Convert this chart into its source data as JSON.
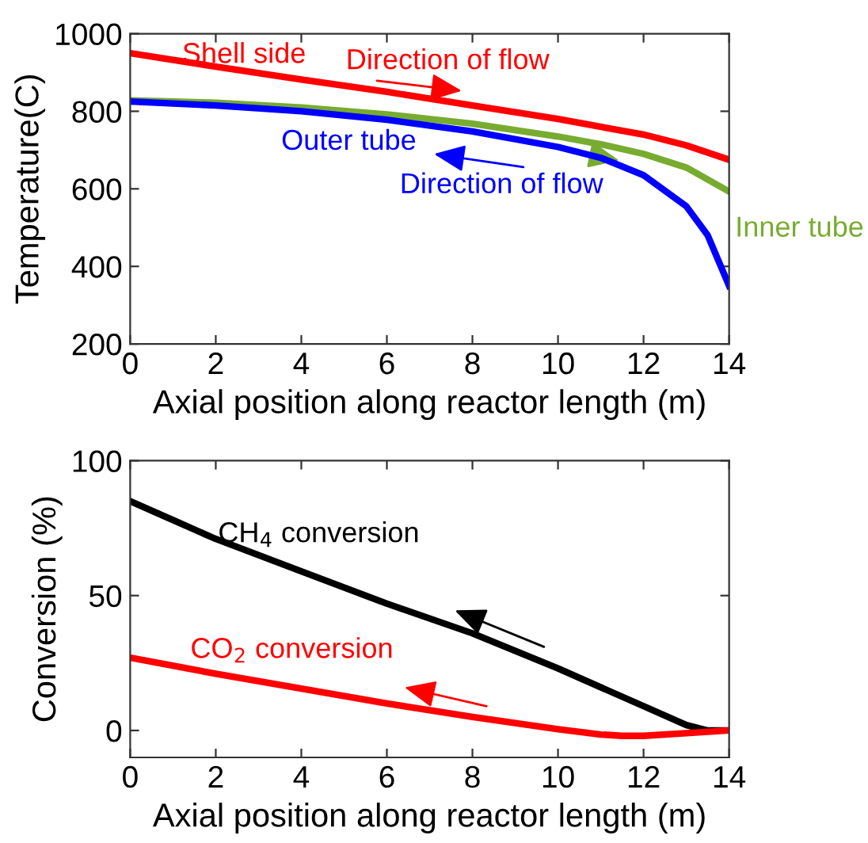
{
  "chart_data": [
    {
      "type": "line",
      "xlabel": "Axial position along reactor length (m)",
      "ylabel": "Temperature(C)",
      "xlim": [
        0,
        14
      ],
      "xticks": [
        0,
        2,
        4,
        6,
        8,
        10,
        12,
        14
      ],
      "ylim": [
        200,
        1000
      ],
      "yticks": [
        200,
        400,
        600,
        800,
        1000
      ],
      "grid": false,
      "legend": false,
      "line_style": "solid",
      "marker": "none",
      "series": [
        {
          "color": "#ff0000",
          "x": [
            0,
            2,
            4,
            6,
            8,
            10,
            12,
            13,
            14
          ],
          "values": [
            950,
            915,
            882,
            850,
            815,
            780,
            740,
            712,
            675
          ]
        },
        {
          "color": "#77ac30",
          "x": [
            0,
            2,
            4,
            6,
            8,
            10,
            11,
            12,
            13,
            14
          ],
          "values": [
            828,
            822,
            810,
            792,
            768,
            735,
            715,
            690,
            655,
            593
          ]
        },
        {
          "color": "#0000ff",
          "x": [
            0,
            2,
            4,
            6,
            8,
            10,
            11,
            12,
            13,
            13.5,
            14
          ],
          "values": [
            825,
            815,
            800,
            778,
            748,
            708,
            680,
            635,
            555,
            480,
            350
          ]
        }
      ],
      "annotations": [
        "Shell side",
        "Direction of flow",
        "Outer tube",
        "Direction of flow",
        "Inner tube"
      ]
    },
    {
      "type": "line",
      "xlabel": "Axial position along reactor length (m)",
      "ylabel": "Conversion (%)",
      "xlim": [
        0,
        14
      ],
      "xticks": [
        0,
        2,
        4,
        6,
        8,
        10,
        12,
        14
      ],
      "ylim": [
        -10,
        100
      ],
      "yticks": [
        0,
        50,
        100
      ],
      "grid": false,
      "legend": false,
      "line_style": "solid",
      "marker": "none",
      "series": [
        {
          "color": "#000000",
          "x": [
            0,
            1,
            2,
            4,
            6,
            8,
            10,
            12,
            13,
            13.5,
            14
          ],
          "values": [
            85,
            78,
            71,
            59,
            47,
            36,
            23,
            9,
            2,
            0,
            0
          ]
        },
        {
          "color": "#ff0000",
          "x": [
            0,
            2,
            4,
            6,
            8,
            10,
            11,
            11.5,
            12,
            13,
            14
          ],
          "values": [
            27,
            21,
            15.5,
            10,
            5,
            0.5,
            -1.5,
            -2,
            -2,
            -1,
            0
          ]
        }
      ],
      "annotations": [
        "CH$_{4}$ conversion",
        "CO$_{2}$ conversion"
      ]
    }
  ]
}
